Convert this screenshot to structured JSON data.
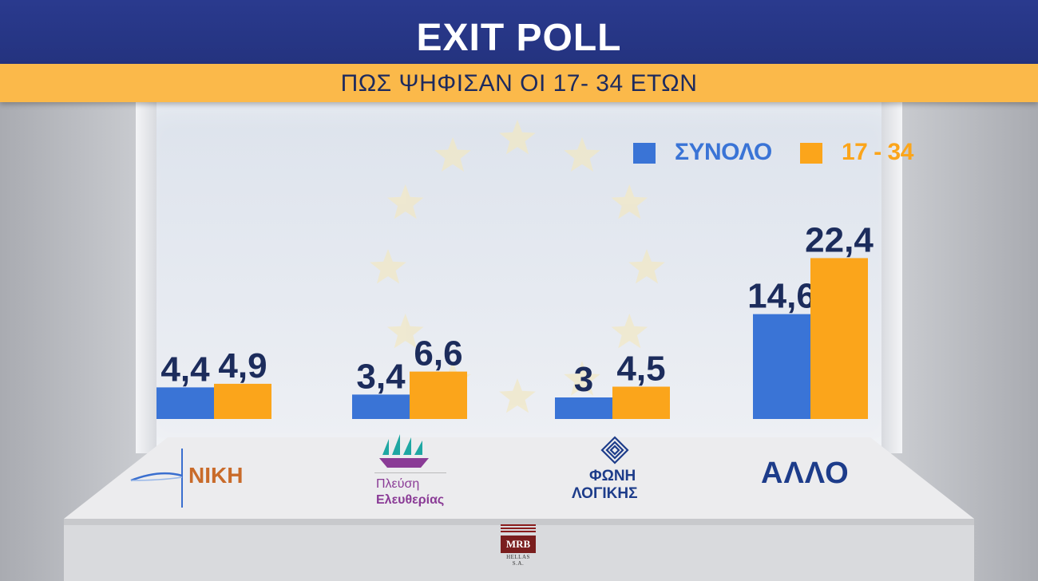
{
  "header": {
    "title": "EXIT POLL",
    "subtitle": "ΠΩΣ ΨΗΦΙΣΑΝ ΟΙ 17- 34 ΕΤΩΝ"
  },
  "colors": {
    "series_total": "#3a74d6",
    "series_young": "#fba51b",
    "header_bg": "#2a3a8e",
    "subheader_bg": "#fbb94a",
    "value_text": "#1c2c5c"
  },
  "chart_data": {
    "type": "bar",
    "categories": [
      "ΝΙΚΗ",
      "Πλεύση Ελευθερίας",
      "ΦΩΝΗ ΛΟΓΙΚΗΣ",
      "ΑΛΛΟ"
    ],
    "series": [
      {
        "name": "ΣΥΝΟΛΟ",
        "values": [
          4.4,
          3.4,
          3,
          14.6
        ],
        "labels": [
          "4,4",
          "3,4",
          "3",
          "14,6"
        ]
      },
      {
        "name": "17 - 34",
        "values": [
          4.9,
          6.6,
          4.5,
          22.4
        ],
        "labels": [
          "4,9",
          "6,6",
          "4,5",
          "22,4"
        ]
      }
    ],
    "title": "EXIT POLL",
    "subtitle": "ΠΩΣ ΨΗΦΙΣΑΝ ΟΙ 17- 34 ΕΤΩΝ",
    "legend_position": "top-right",
    "grid": false
  },
  "logos": {
    "niki": "ΝΙΚΗ",
    "plefsi_line1": "Πλεύση",
    "plefsi_line2": "Ελευθερίας",
    "foni_line1": "ΦΩΝΗ",
    "foni_line2": "ΛΟΓΙΚΗΣ",
    "allo": "ΑΛΛΟ"
  },
  "source": {
    "name": "MRB",
    "sub": "HELLAS S.A."
  }
}
